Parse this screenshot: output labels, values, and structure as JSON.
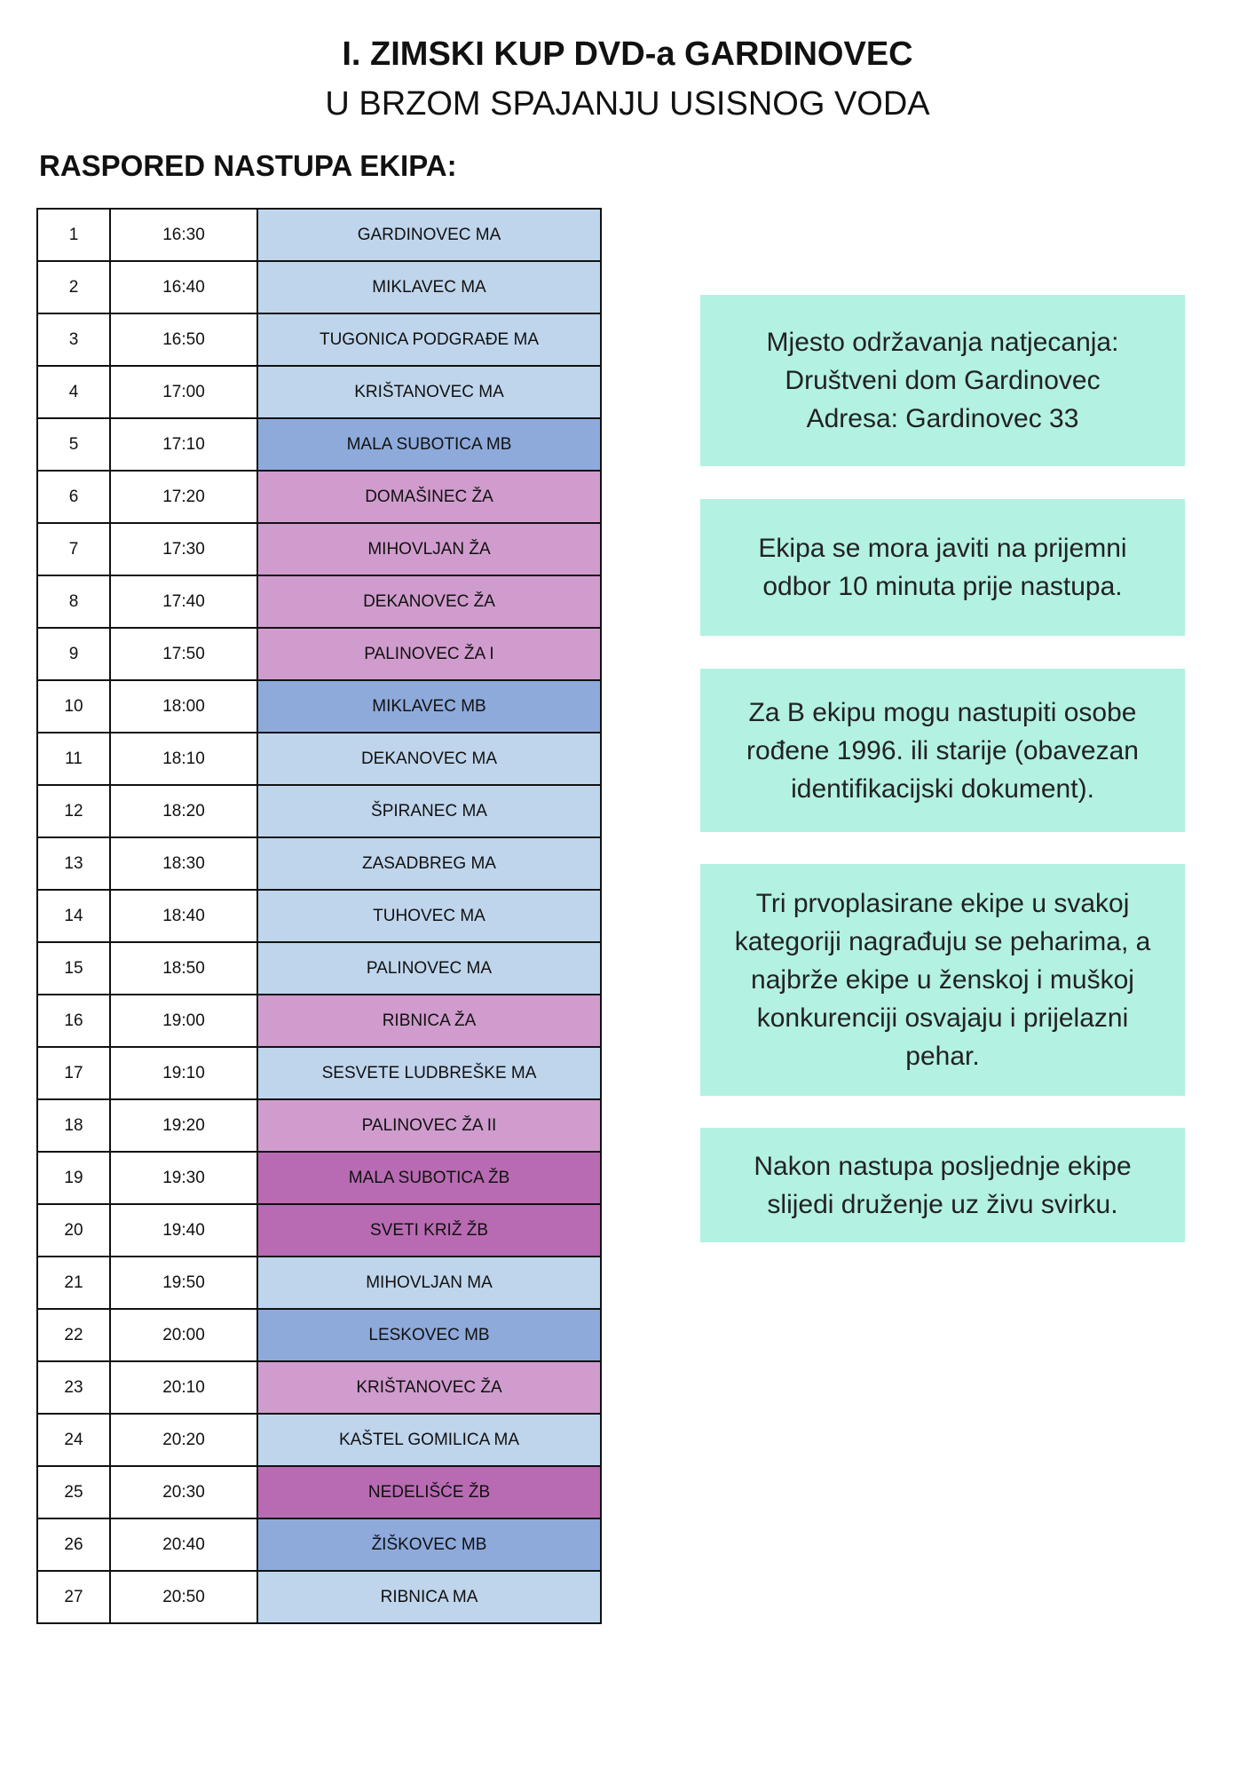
{
  "header": {
    "title": "I. ZIMSKI KUP DVD-a GARDINOVEC",
    "subtitle": "U BRZOM SPAJANJU USISNOG VODA",
    "section": "RASPORED NASTUPA EKIPA:"
  },
  "table": {
    "rows": [
      {
        "number": "1",
        "time": "16:30",
        "team": "GARDINOVEC MA",
        "color": "#bfd5ec"
      },
      {
        "number": "2",
        "time": "16:40",
        "team": "MIKLAVEC MA",
        "color": "#bfd5ec"
      },
      {
        "number": "3",
        "time": "16:50",
        "team": "TUGONICA PODGRAĐE MA",
        "color": "#bfd5ec"
      },
      {
        "number": "4",
        "time": "17:00",
        "team": "KRIŠTANOVEC MA",
        "color": "#bfd5ec"
      },
      {
        "number": "5",
        "time": "17:10",
        "team": "MALA SUBOTICA MB",
        "color": "#8eaadb"
      },
      {
        "number": "6",
        "time": "17:20",
        "team": "DOMAŠINEC ŽA",
        "color": "#d09ccd"
      },
      {
        "number": "7",
        "time": "17:30",
        "team": "MIHOVLJAN ŽA",
        "color": "#d09ccd"
      },
      {
        "number": "8",
        "time": "17:40",
        "team": "DEKANOVEC ŽA",
        "color": "#d09ccd"
      },
      {
        "number": "9",
        "time": "17:50",
        "team": "PALINOVEC ŽA I",
        "color": "#d09ccd"
      },
      {
        "number": "10",
        "time": "18:00",
        "team": "MIKLAVEC MB",
        "color": "#8eaadb"
      },
      {
        "number": "11",
        "time": "18:10",
        "team": "DEKANOVEC MA",
        "color": "#bfd5ec"
      },
      {
        "number": "12",
        "time": "18:20",
        "team": "ŠPIRANEC MA",
        "color": "#bfd5ec"
      },
      {
        "number": "13",
        "time": "18:30",
        "team": "ZASADBREG MA",
        "color": "#bfd5ec"
      },
      {
        "number": "14",
        "time": "18:40",
        "team": "TUHOVEC MA",
        "color": "#bfd5ec"
      },
      {
        "number": "15",
        "time": "18:50",
        "team": "PALINOVEC MA",
        "color": "#bfd5ec"
      },
      {
        "number": "16",
        "time": "19:00",
        "team": "RIBNICA ŽA",
        "color": "#d09ccd"
      },
      {
        "number": "17",
        "time": "19:10",
        "team": "SESVETE LUDBREŠKE MA",
        "color": "#bfd5ec"
      },
      {
        "number": "18",
        "time": "19:20",
        "team": "PALINOVEC ŽA II",
        "color": "#d09ccd"
      },
      {
        "number": "19",
        "time": "19:30",
        "team": "MALA SUBOTICA ŽB",
        "color": "#b86bb2"
      },
      {
        "number": "20",
        "time": "19:40",
        "team": "SVETI KRIŽ ŽB",
        "color": "#b86bb2"
      },
      {
        "number": "21",
        "time": "19:50",
        "team": "MIHOVLJAN MA",
        "color": "#bfd5ec"
      },
      {
        "number": "22",
        "time": "20:00",
        "team": "LESKOVEC MB",
        "color": "#8eaadb"
      },
      {
        "number": "23",
        "time": "20:10",
        "team": "KRIŠTANOVEC ŽA",
        "color": "#d09ccd"
      },
      {
        "number": "24",
        "time": "20:20",
        "team": "KAŠTEL GOMILICA MA",
        "color": "#bfd5ec"
      },
      {
        "number": "25",
        "time": "20:30",
        "team": "NEDELIŠĆE ŽB",
        "color": "#b86bb2"
      },
      {
        "number": "26",
        "time": "20:40",
        "team": "ŽIŠKOVEC MB",
        "color": "#8eaadb"
      },
      {
        "number": "27",
        "time": "20:50",
        "team": "RIBNICA MA",
        "color": "#bfd5ec"
      }
    ]
  },
  "notes": [
    {
      "lines": [
        "Mjesto održavanja natjecanja:",
        "Društveni dom Gardinovec",
        "Adresa: Gardinovec 33"
      ]
    },
    {
      "lines": [
        "Ekipa se mora javiti na prijemni",
        "odbor 10 minuta prije nastupa."
      ]
    },
    {
      "lines": [
        "Za B ekipu mogu nastupiti osobe",
        "rođene 1996. ili starije (obavezan",
        "identifikacijski dokument)."
      ]
    },
    {
      "lines": [
        "Tri prvoplasirane ekipe u svakoj",
        "kategoriji nagrađuju se peharima, a",
        "najbrže ekipe u ženskoj i muškoj",
        "konkurenciji osvajaju i prijelazni",
        "pehar."
      ]
    },
    {
      "lines": [
        "Nakon nastupa posljednje ekipe",
        "slijedi druženje uz živu svirku."
      ]
    }
  ]
}
